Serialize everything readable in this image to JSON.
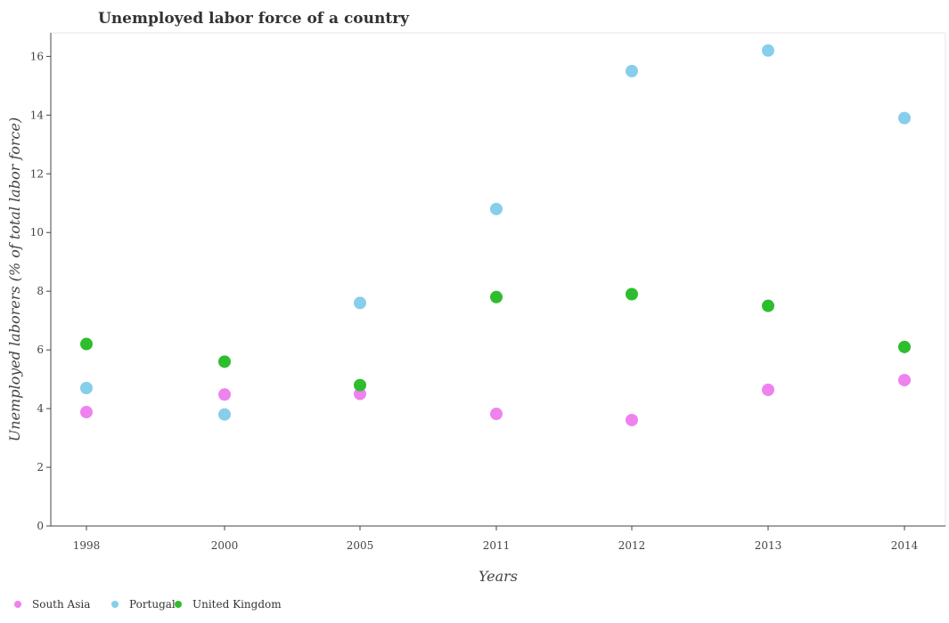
{
  "chart_data": {
    "type": "scatter",
    "title": "Unemployed labor force of a country",
    "xlabel": "Years",
    "ylabel": "Unemployed laborers (% of total labor force)",
    "categories": [
      "1998",
      "2000",
      "2005",
      "2011",
      "2012",
      "2013",
      "2014"
    ],
    "ylim": [
      0,
      16.8
    ],
    "yticks": [
      0,
      2,
      4,
      6,
      8,
      10,
      12,
      14,
      16
    ],
    "grid": false,
    "legend_position": "bottom-left",
    "series": [
      {
        "name": "South Asia",
        "color": "#ee82ee",
        "values": [
          3.88,
          4.48,
          4.5,
          3.82,
          3.61,
          4.64,
          4.97
        ]
      },
      {
        "name": "Portugal",
        "color": "#87ceeb",
        "values": [
          4.7,
          3.8,
          7.6,
          10.8,
          15.5,
          16.2,
          13.9
        ]
      },
      {
        "name": "United Kingdom",
        "color": "#2ebd2e",
        "values": [
          6.2,
          5.6,
          4.8,
          7.8,
          7.9,
          7.5,
          6.1
        ]
      }
    ]
  }
}
